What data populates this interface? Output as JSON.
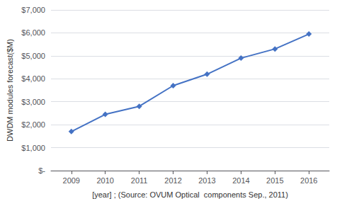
{
  "chart_data": {
    "type": "line",
    "x": [
      2009,
      2010,
      2011,
      2012,
      2013,
      2014,
      2015,
      2016
    ],
    "values": [
      1700,
      2450,
      2800,
      3700,
      4200,
      4900,
      5300,
      5950
    ],
    "color": "#4472C4",
    "marker": "diamond",
    "xlabel": "[year] ; (Source: OVUM Optical  components Sep., 2011)",
    "ylabel": "DWDM modules forecast($M)",
    "xlim": [
      2008.4,
      2016.6
    ],
    "xticks": [
      2009,
      2010,
      2011,
      2012,
      2013,
      2014,
      2015,
      2016
    ],
    "ylim": [
      0,
      7000
    ],
    "yticks": [
      {
        "value": 0,
        "label": "$-"
      },
      {
        "value": 1000,
        "label": "$1,000"
      },
      {
        "value": 2000,
        "label": "$2,000"
      },
      {
        "value": 3000,
        "label": "$3,000"
      },
      {
        "value": 4000,
        "label": "$4,000"
      },
      {
        "value": 5000,
        "label": "$5,000"
      },
      {
        "value": 6000,
        "label": "$6,000"
      },
      {
        "value": 7000,
        "label": "$7,000"
      }
    ],
    "grid": true
  }
}
